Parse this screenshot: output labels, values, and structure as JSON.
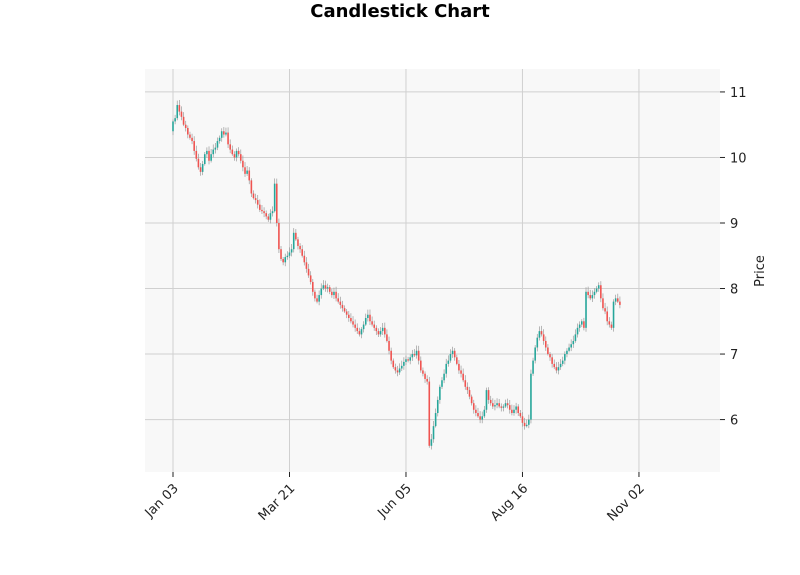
{
  "chart_data": {
    "type": "candlestick",
    "title": "Candlestick Chart",
    "xlabel": "",
    "ylabel": "Price",
    "ylim": [
      5.2,
      11.35
    ],
    "y_ticks": [
      6,
      7,
      8,
      9,
      10,
      11
    ],
    "x_tick_labels": [
      "Jan 03",
      "Mar 21",
      "Jun 05",
      "Aug 16",
      "Nov 02"
    ],
    "x_tick_index": [
      0,
      55,
      110,
      165,
      220
    ],
    "grid": true,
    "legend": "none",
    "colors": {
      "up": "#26a69a",
      "down": "#ef5350",
      "wick": "#9a9a9a",
      "background": "#f8f8f8",
      "grid": "#d0d0d0"
    },
    "close_series": [
      10.55,
      10.6,
      10.8,
      10.7,
      10.62,
      10.5,
      10.45,
      10.35,
      10.3,
      10.25,
      10.1,
      9.98,
      9.85,
      9.78,
      9.9,
      10.05,
      10.1,
      9.95,
      10.05,
      10.12,
      10.15,
      10.25,
      10.3,
      10.4,
      10.35,
      10.38,
      10.2,
      10.12,
      10.05,
      10.0,
      10.1,
      10.05,
      9.95,
      9.85,
      9.75,
      9.8,
      9.65,
      9.45,
      9.38,
      9.35,
      9.28,
      9.2,
      9.18,
      9.15,
      9.1,
      9.05,
      9.15,
      9.18,
      9.6,
      9.0,
      8.6,
      8.45,
      8.4,
      8.48,
      8.5,
      8.55,
      8.6,
      8.85,
      8.75,
      8.65,
      8.6,
      8.5,
      8.4,
      8.3,
      8.2,
      8.1,
      7.95,
      7.85,
      7.8,
      7.9,
      8.0,
      8.05,
      8.0,
      8.02,
      7.95,
      7.9,
      7.95,
      7.85,
      7.8,
      7.75,
      7.7,
      7.65,
      7.6,
      7.55,
      7.5,
      7.45,
      7.4,
      7.35,
      7.3,
      7.38,
      7.45,
      7.55,
      7.6,
      7.5,
      7.45,
      7.4,
      7.35,
      7.3,
      7.35,
      7.4,
      7.3,
      7.2,
      7.05,
      6.9,
      6.8,
      6.75,
      6.72,
      6.78,
      6.82,
      6.88,
      6.92,
      6.9,
      6.95,
      7.0,
      6.98,
      7.05,
      6.9,
      6.75,
      6.7,
      6.62,
      6.58,
      5.6,
      5.7,
      5.9,
      6.1,
      6.3,
      6.5,
      6.6,
      6.7,
      6.85,
      6.9,
      7.0,
      7.05,
      6.95,
      6.85,
      6.75,
      6.7,
      6.6,
      6.5,
      6.45,
      6.35,
      6.25,
      6.15,
      6.1,
      6.05,
      6.0,
      6.05,
      6.15,
      6.45,
      6.3,
      6.25,
      6.2,
      6.22,
      6.25,
      6.2,
      6.18,
      6.2,
      6.25,
      6.22,
      6.15,
      6.1,
      6.15,
      6.2,
      6.1,
      6.05,
      5.95,
      5.9,
      5.92,
      6.0,
      6.7,
      6.9,
      7.1,
      7.25,
      7.35,
      7.3,
      7.2,
      7.1,
      7.0,
      6.95,
      6.85,
      6.8,
      6.75,
      6.8,
      6.85,
      6.9,
      7.0,
      7.05,
      7.1,
      7.15,
      7.2,
      7.3,
      7.4,
      7.45,
      7.5,
      7.4,
      7.95,
      7.9,
      7.85,
      7.9,
      7.95,
      8.0,
      8.05,
      7.85,
      7.7,
      7.65,
      7.5,
      7.45,
      7.4,
      7.8,
      7.85,
      7.8,
      7.75
    ]
  }
}
